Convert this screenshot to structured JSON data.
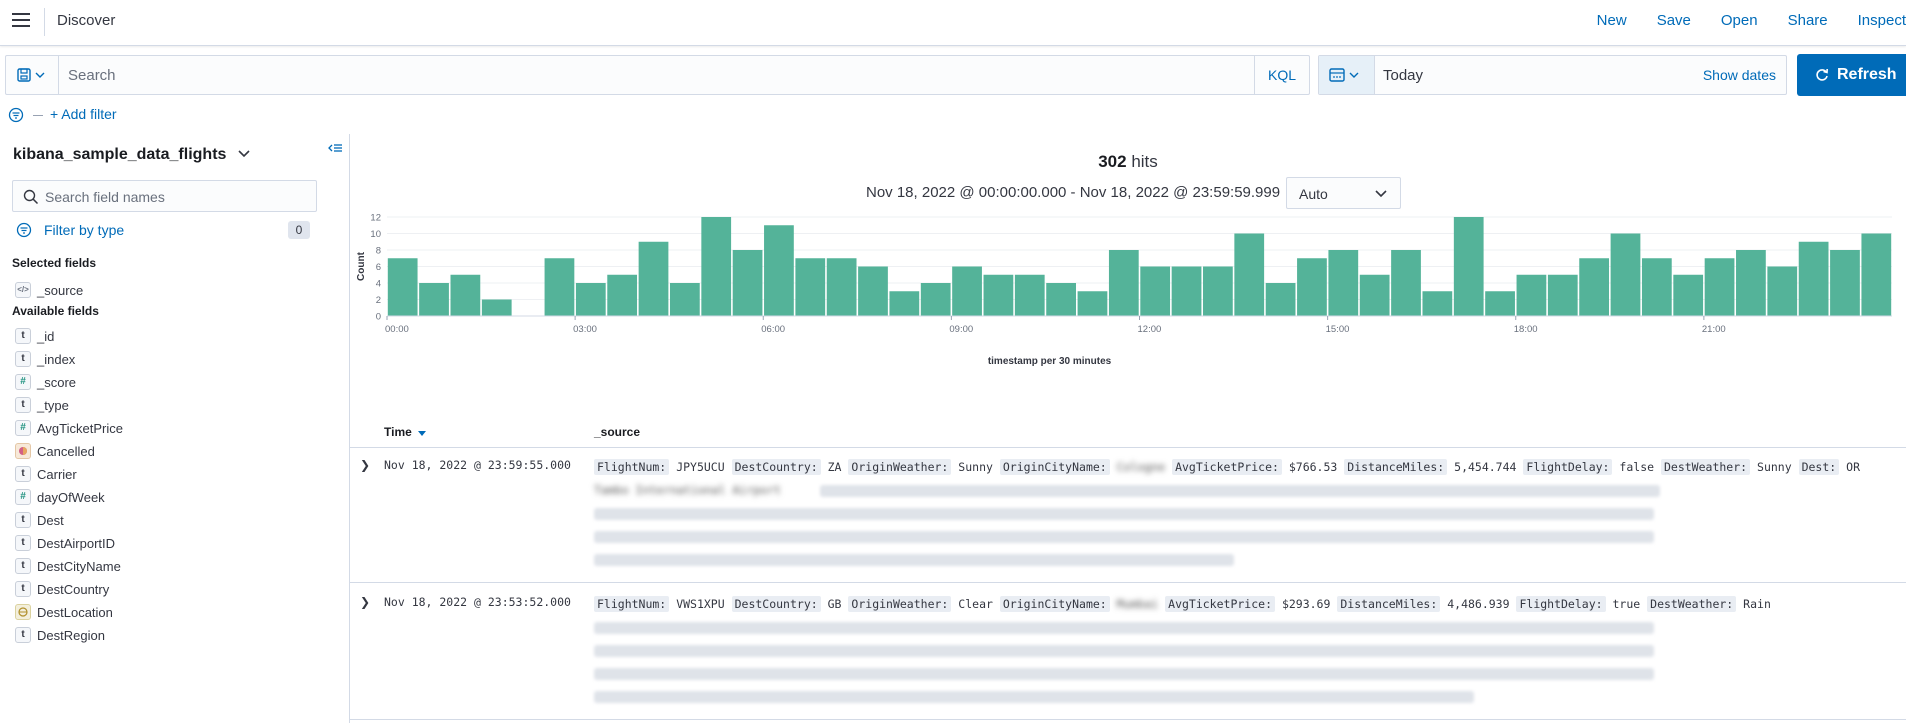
{
  "header": {
    "title": "Discover",
    "links": [
      "New",
      "Save",
      "Open",
      "Share",
      "Inspect"
    ]
  },
  "query": {
    "placeholder": "Search",
    "language": "KQL"
  },
  "time": {
    "label": "Today",
    "show_dates": "Show dates",
    "refresh": "Refresh"
  },
  "filters": {
    "add_filter": "+ Add filter"
  },
  "sidebar": {
    "index_pattern": "kibana_sample_data_flights",
    "search_placeholder": "Search field names",
    "filter_by_type": "Filter by type",
    "filter_count": "0",
    "selected_title": "Selected fields",
    "selected_fields": [
      {
        "name": "_source",
        "type": "source"
      }
    ],
    "available_title": "Available fields",
    "available_fields": [
      {
        "name": "_id",
        "type": "t"
      },
      {
        "name": "_index",
        "type": "t"
      },
      {
        "name": "_score",
        "type": "#"
      },
      {
        "name": "_type",
        "type": "t"
      },
      {
        "name": "AvgTicketPrice",
        "type": "#"
      },
      {
        "name": "Cancelled",
        "type": "bool"
      },
      {
        "name": "Carrier",
        "type": "t"
      },
      {
        "name": "dayOfWeek",
        "type": "#"
      },
      {
        "name": "Dest",
        "type": "t"
      },
      {
        "name": "DestAirportID",
        "type": "t"
      },
      {
        "name": "DestCityName",
        "type": "t"
      },
      {
        "name": "DestCountry",
        "type": "t"
      },
      {
        "name": "DestLocation",
        "type": "geo"
      },
      {
        "name": "DestRegion",
        "type": "t"
      }
    ]
  },
  "results": {
    "hits_count": "302",
    "hits_label": "hits",
    "range": "Nov 18, 2022 @ 00:00:00.000 - Nov 18, 2022 @ 23:59:59.999",
    "interval": "Auto",
    "columns": {
      "time": "Time",
      "source": "_source"
    },
    "documents": [
      {
        "time": "Nov 18, 2022 @ 23:59:55.000",
        "pairs": [
          {
            "k": "FlightNum:",
            "v": "JPY5UCU"
          },
          {
            "k": "DestCountry:",
            "v": "ZA"
          },
          {
            "k": "OriginWeather:",
            "v": "Sunny"
          },
          {
            "k": "OriginCityName:",
            "v": "Cologne",
            "blur": true
          },
          {
            "k": "AvgTicketPrice:",
            "v": "$766.53"
          },
          {
            "k": "DistanceMiles:",
            "v": "5,454.744"
          },
          {
            "k": "FlightDelay:",
            "v": "false"
          },
          {
            "k": "DestWeather:",
            "v": "Sunny"
          },
          {
            "k": "Dest:",
            "v": "OR"
          }
        ],
        "second_line_start": "Tambo International Airport"
      },
      {
        "time": "Nov 18, 2022 @ 23:53:52.000",
        "pairs": [
          {
            "k": "FlightNum:",
            "v": "VWS1XPU"
          },
          {
            "k": "DestCountry:",
            "v": "GB"
          },
          {
            "k": "OriginWeather:",
            "v": "Clear"
          },
          {
            "k": "OriginCityName:",
            "v": "Mumbai",
            "blur": true
          },
          {
            "k": "AvgTicketPrice:",
            "v": "$293.69"
          },
          {
            "k": "DistanceMiles:",
            "v": "4,486.939"
          },
          {
            "k": "FlightDelay:",
            "v": "true"
          },
          {
            "k": "DestWeather:",
            "v": "Rain"
          }
        ]
      }
    ]
  },
  "chart_data": {
    "type": "bar",
    "title": "",
    "xlabel": "timestamp per 30 minutes",
    "ylabel": "Count",
    "ylim": [
      0,
      12
    ],
    "yticks": [
      0,
      2,
      4,
      6,
      8,
      10,
      12
    ],
    "xtick_labels": [
      "00:00",
      "03:00",
      "06:00",
      "09:00",
      "12:00",
      "15:00",
      "18:00",
      "21:00"
    ],
    "bin_minutes": 30,
    "x_start": "00:00",
    "values": [
      7,
      4,
      5,
      2,
      0,
      7,
      4,
      5,
      9,
      4,
      12,
      8,
      11,
      7,
      7,
      6,
      3,
      4,
      6,
      5,
      5,
      4,
      3,
      8,
      6,
      6,
      6,
      10,
      4,
      7,
      8,
      5,
      8,
      3,
      12,
      3,
      5,
      5,
      7,
      10,
      7,
      5,
      7,
      8,
      6,
      9,
      8,
      10
    ],
    "bar_color": "#54b399"
  }
}
